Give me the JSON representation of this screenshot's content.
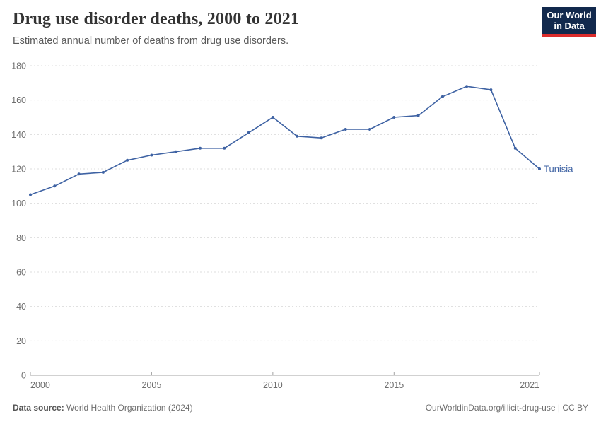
{
  "header": {
    "title": "Drug use disorder deaths, 2000 to 2021",
    "subtitle": "Estimated annual number of deaths from drug use disorders.",
    "logo_line1": "Our World",
    "logo_line2": "in Data"
  },
  "chart_data": {
    "type": "line",
    "title": "Drug use disorder deaths, 2000 to 2021",
    "entity": "Tunisia",
    "x": [
      2000,
      2001,
      2002,
      2003,
      2004,
      2005,
      2006,
      2007,
      2008,
      2009,
      2010,
      2011,
      2012,
      2013,
      2014,
      2015,
      2016,
      2017,
      2018,
      2019,
      2020,
      2021
    ],
    "series": [
      {
        "name": "Tunisia",
        "values": [
          105,
          110,
          117,
          118,
          125,
          128,
          130,
          132,
          132,
          141,
          150,
          139,
          138,
          143,
          143,
          150,
          151,
          162,
          168,
          166,
          132,
          120
        ]
      }
    ],
    "xlabel": "",
    "ylabel": "",
    "ylim": [
      0,
      180
    ],
    "ytick_interval": 20,
    "yticks": [
      0,
      20,
      40,
      60,
      80,
      100,
      120,
      140,
      160,
      180
    ],
    "xticks": [
      2000,
      2005,
      2010,
      2015,
      2021
    ],
    "grid": "horizontal-dashed",
    "legend_position": "end-of-line-label",
    "line_color": "#3e62a3",
    "axis_color": "#a3a3a3",
    "grid_color": "#dcdcdc",
    "tick_label_color": "#6e6e6e"
  },
  "footer": {
    "source_label": "Data source:",
    "source_value": " World Health Organization (2024)",
    "link": "OurWorldinData.org/illicit-drug-use | CC BY"
  },
  "colors": {
    "accent_line": "#3e62a3",
    "logo_bg": "#12294d",
    "logo_stripe": "#dc2c2c"
  }
}
